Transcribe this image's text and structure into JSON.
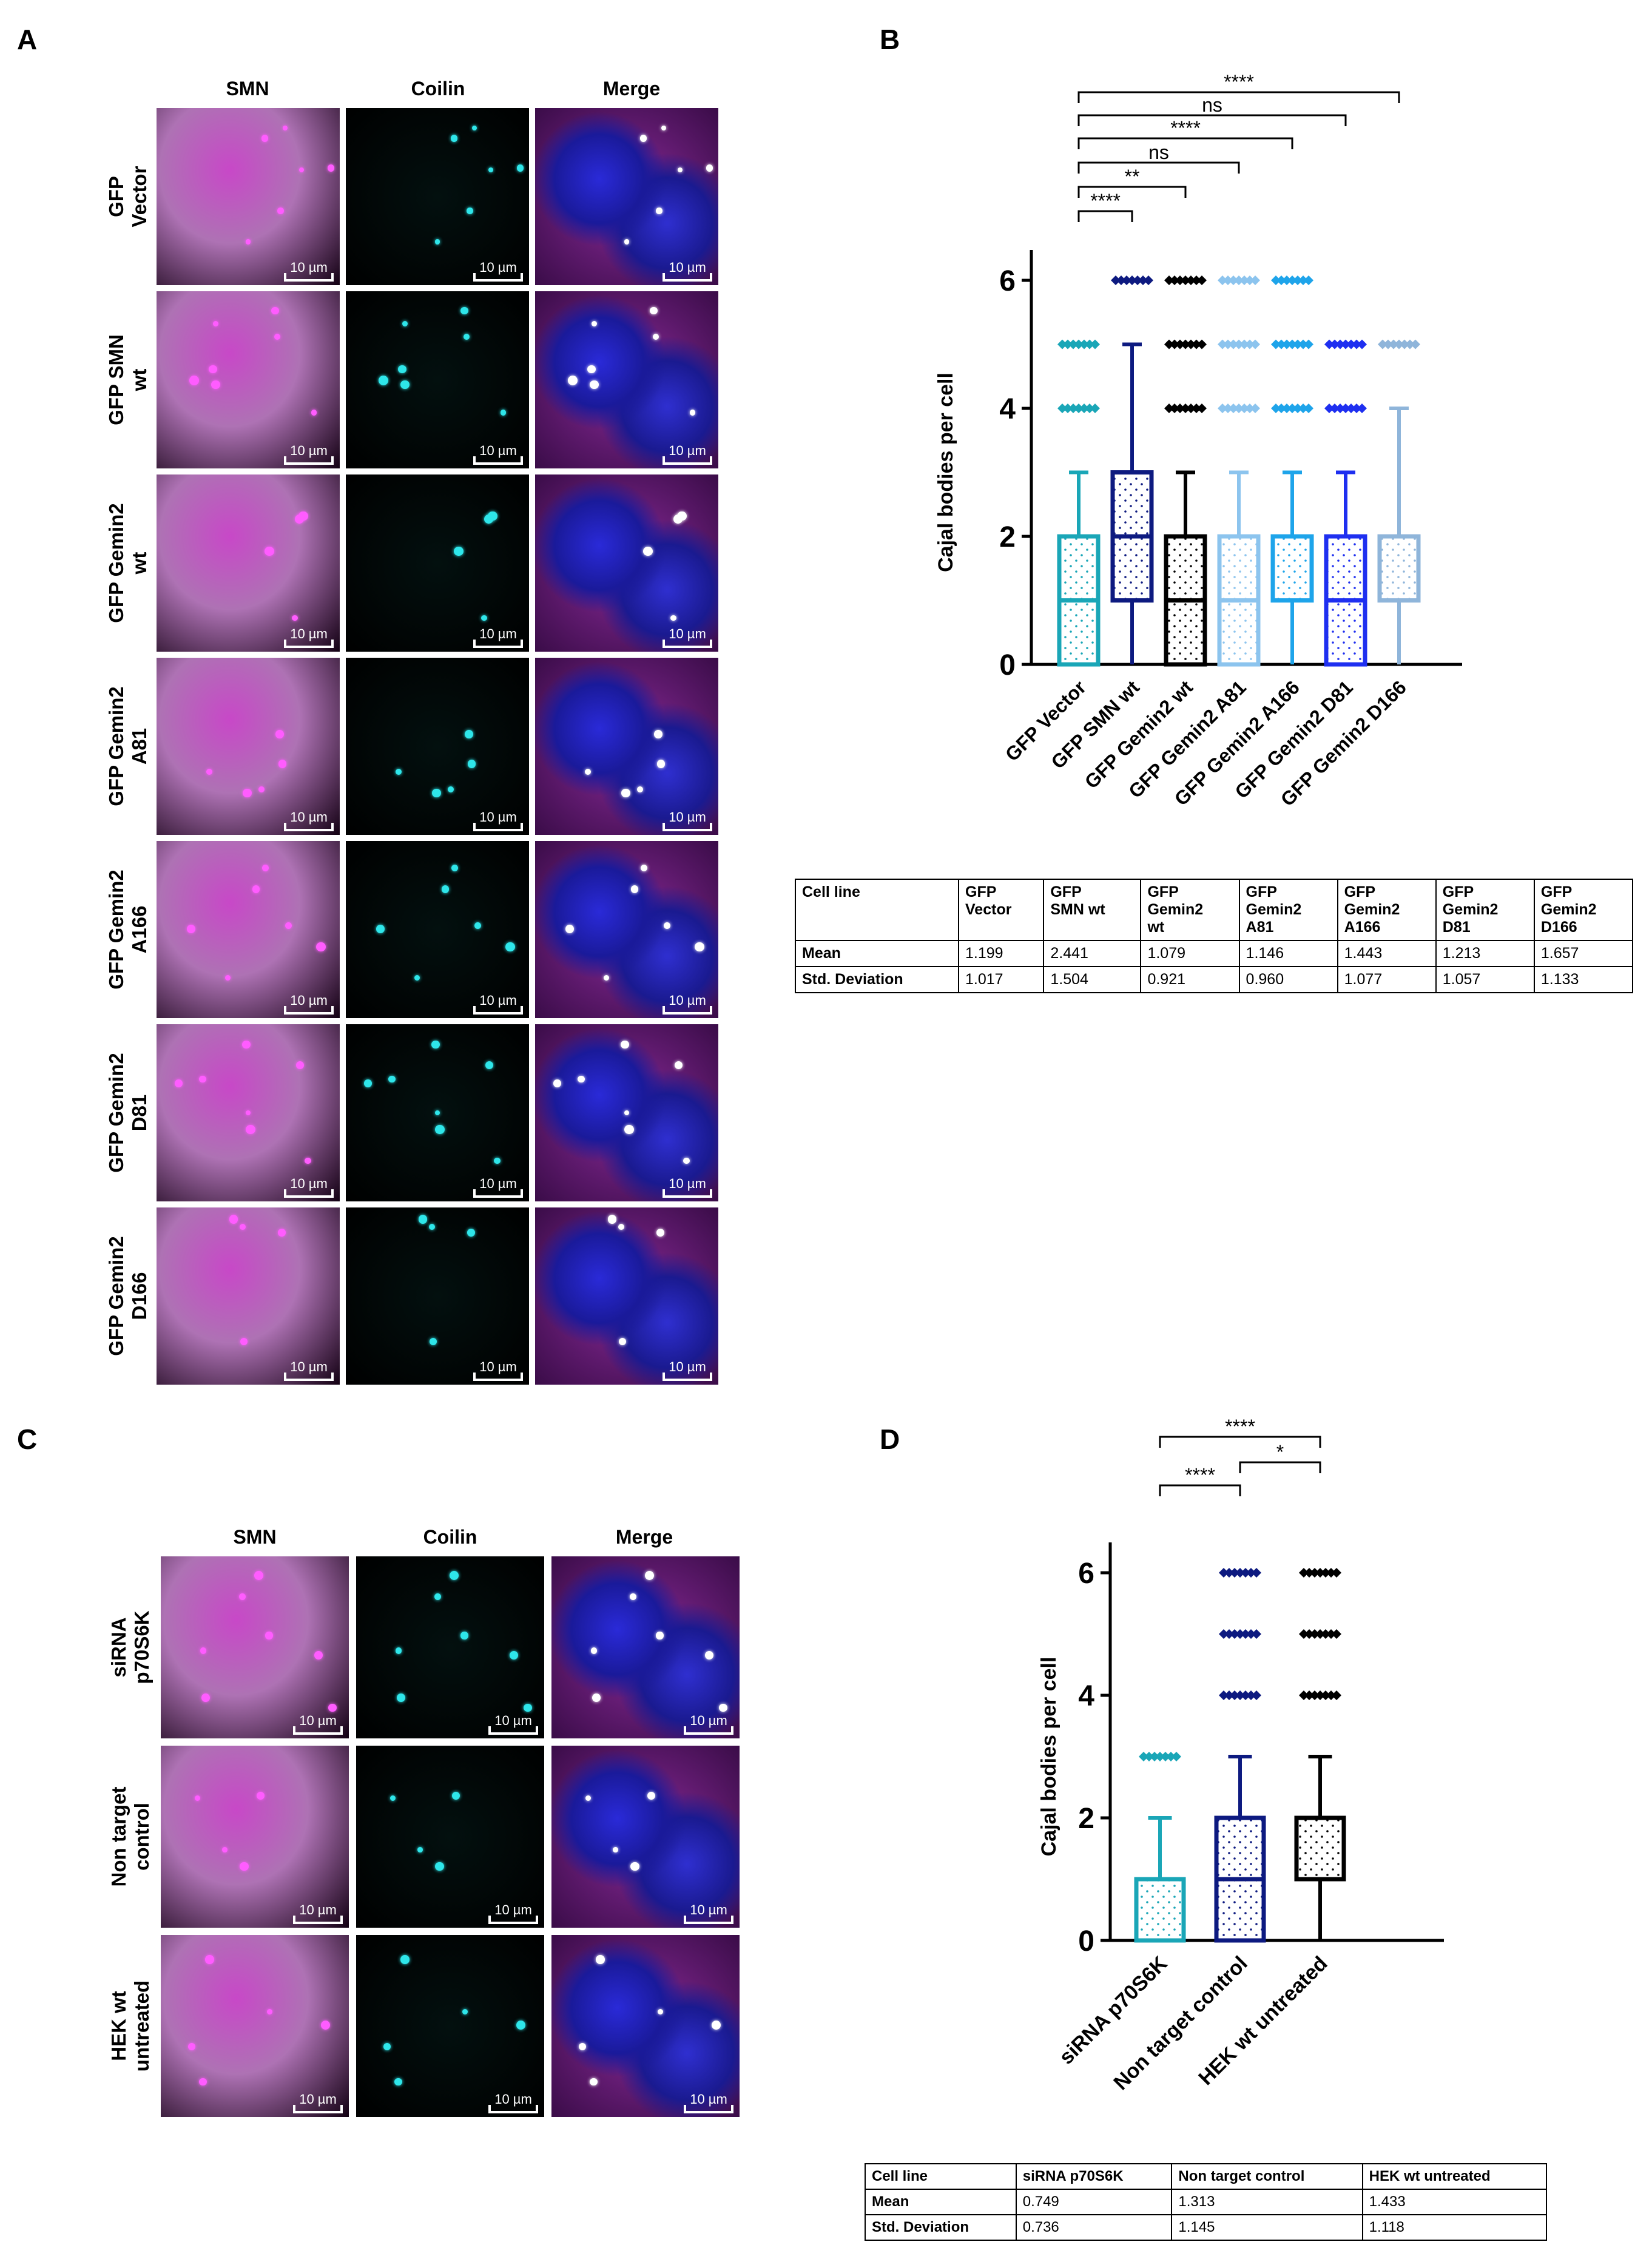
{
  "panels": {
    "a": "A",
    "b": "B",
    "c": "C",
    "d": "D"
  },
  "channels": [
    "SMN",
    "Coilin",
    "Merge"
  ],
  "scale_bar_label": "10 µm",
  "panel_a_rows": [
    [
      "GFP",
      "Vector"
    ],
    [
      "GFP SMN",
      "wt"
    ],
    [
      "GFP Gemin2",
      "wt"
    ],
    [
      "GFP Gemin2",
      "A81"
    ],
    [
      "GFP Gemin2",
      "A166"
    ],
    [
      "GFP Gemin2",
      "D81"
    ],
    [
      "GFP Gemin2",
      "D166"
    ]
  ],
  "panel_c_rows": [
    [
      "siRNA",
      "p70S6K"
    ],
    [
      "Non target",
      "control"
    ],
    [
      "HEK wt",
      "untreated"
    ]
  ],
  "chart_data": [
    {
      "type": "box",
      "panel": "B",
      "ylabel": "Cajal bodies per cell",
      "ylim": [
        0,
        6
      ],
      "yticks": [
        0,
        2,
        4,
        6
      ],
      "categories": [
        "GFP Vector",
        "GFP SMN wt",
        "GFP Gemin2 wt",
        "GFP Gemin2 A81",
        "GFP Gemin2 A166",
        "GFP Gemin2 D81",
        "GFP Gemin2 D166"
      ],
      "colors": [
        "#1aa6b7",
        "#0d1a80",
        "#000000",
        "#8cc4ee",
        "#1ea4ea",
        "#1e2ff0",
        "#8fb5da"
      ],
      "boxes": [
        {
          "min": 0,
          "q1": 0,
          "median": 1,
          "q3": 2,
          "max": 3,
          "outliers": [
            4,
            5
          ]
        },
        {
          "min": 0,
          "q1": 1,
          "median": 2,
          "q3": 3,
          "max": 5,
          "outliers": [
            6
          ]
        },
        {
          "min": 0,
          "q1": 0,
          "median": 1,
          "q3": 2,
          "max": 3,
          "outliers": [
            4,
            5,
            6
          ]
        },
        {
          "min": 0,
          "q1": 0,
          "median": 1,
          "q3": 2,
          "max": 3,
          "outliers": [
            4,
            5,
            6
          ]
        },
        {
          "min": 0,
          "q1": 1,
          "median": 1,
          "q3": 2,
          "max": 3,
          "outliers": [
            4,
            5,
            6
          ]
        },
        {
          "min": 0,
          "q1": 0,
          "median": 1,
          "q3": 2,
          "max": 3,
          "outliers": [
            4,
            5
          ]
        },
        {
          "min": 0,
          "q1": 1,
          "median": 1,
          "q3": 2,
          "max": 4,
          "outliers": [
            5
          ]
        }
      ],
      "significance": [
        {
          "from": 0,
          "to": 1,
          "label": "****"
        },
        {
          "from": 0,
          "to": 2,
          "label": "**"
        },
        {
          "from": 0,
          "to": 3,
          "label": "ns"
        },
        {
          "from": 0,
          "to": 4,
          "label": "****"
        },
        {
          "from": 0,
          "to": 5,
          "label": "ns"
        },
        {
          "from": 0,
          "to": 6,
          "label": "****"
        }
      ],
      "table": {
        "header": [
          "Cell line",
          "GFP\nVector",
          "GFP\nSMN wt",
          "GFP\nGemin2\nwt",
          "GFP\nGemin2\nA81",
          "GFP\nGemin2\nA166",
          "GFP\nGemin2\nD81",
          "GFP\nGemin2\nD166"
        ],
        "rows": [
          [
            "Mean",
            "1.199",
            "2.441",
            "1.079",
            "1.146",
            "1.443",
            "1.213",
            "1.657"
          ],
          [
            "Std. Deviation",
            "1.017",
            "1.504",
            "0.921",
            "0.960",
            "1.077",
            "1.057",
            "1.133"
          ]
        ]
      }
    },
    {
      "type": "box",
      "panel": "D",
      "ylabel": "Cajal bodies per cell",
      "ylim": [
        0,
        6
      ],
      "yticks": [
        0,
        2,
        4,
        6
      ],
      "categories": [
        "siRNA p70S6K",
        "Non target control",
        "HEK wt untreated"
      ],
      "colors": [
        "#1aa6b7",
        "#0d1a80",
        "#000000"
      ],
      "boxes": [
        {
          "min": 0,
          "q1": 0,
          "median": 0,
          "q3": 1,
          "max": 2,
          "outliers": [
            3
          ]
        },
        {
          "min": 0,
          "q1": 0,
          "median": 1,
          "q3": 2,
          "max": 3,
          "outliers": [
            4,
            5,
            6
          ]
        },
        {
          "min": 0,
          "q1": 1,
          "median": 1,
          "q3": 2,
          "max": 3,
          "outliers": [
            4,
            5,
            6
          ]
        }
      ],
      "significance": [
        {
          "from": 0,
          "to": 1,
          "label": "****"
        },
        {
          "from": 0,
          "to": 2,
          "label": "****"
        },
        {
          "from": 1,
          "to": 2,
          "label": "*"
        }
      ],
      "table": {
        "header": [
          "Cell line",
          "siRNA p70S6K",
          "Non target control",
          "HEK wt untreated"
        ],
        "rows": [
          [
            "Mean",
            "0.749",
            "1.313",
            "1.433"
          ],
          [
            "Std. Deviation",
            "0.736",
            "1.145",
            "1.118"
          ]
        ]
      }
    }
  ]
}
